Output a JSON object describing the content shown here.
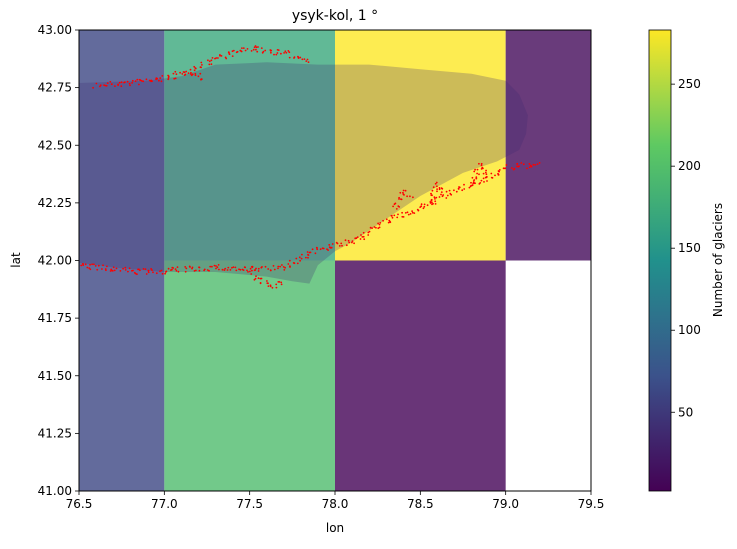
{
  "chart_data": {
    "type": "heatmap",
    "title": "ysyk-kol, 1 °",
    "xlabel": "lon",
    "ylabel": "lat",
    "xlim": [
      76.5,
      79.5
    ],
    "ylim": [
      41.0,
      43.0
    ],
    "xticks": [
      "76.5",
      "77.0",
      "77.5",
      "78.0",
      "78.5",
      "79.0",
      "79.5"
    ],
    "yticks": [
      "41.00",
      "41.25",
      "41.50",
      "41.75",
      "42.00",
      "42.25",
      "42.50",
      "42.75",
      "43.00"
    ],
    "grid": false,
    "colorbar": {
      "label": "Number of glaciers",
      "colormap": "viridis",
      "range": [
        2,
        283
      ],
      "ticks": [
        "50",
        "100",
        "150",
        "200",
        "250"
      ],
      "tick_values": [
        50,
        100,
        150,
        200,
        250
      ]
    },
    "cells": [
      {
        "x0": 76.5,
        "x1": 77.0,
        "y0": 42.0,
        "y1": 43.0,
        "value": 62
      },
      {
        "x0": 77.0,
        "x1": 78.0,
        "y0": 42.0,
        "y1": 43.0,
        "value": 170
      },
      {
        "x0": 78.0,
        "x1": 79.0,
        "y0": 42.0,
        "y1": 43.0,
        "value": 283
      },
      {
        "x0": 79.0,
        "x1": 79.5,
        "y0": 42.0,
        "y1": 43.0,
        "value": 10
      },
      {
        "x0": 76.5,
        "x1": 77.0,
        "y0": 41.0,
        "y1": 42.0,
        "value": 62
      },
      {
        "x0": 77.0,
        "x1": 78.0,
        "y0": 41.0,
        "y1": 42.0,
        "value": 195
      },
      {
        "x0": 78.0,
        "x1": 79.0,
        "y0": 41.0,
        "y1": 42.0,
        "value": 4
      }
    ],
    "lake_outline": [
      [
        76.5,
        42.77
      ],
      [
        76.9,
        42.78
      ],
      [
        77.1,
        42.8
      ],
      [
        77.3,
        42.85
      ],
      [
        77.6,
        42.86
      ],
      [
        77.9,
        42.85
      ],
      [
        78.2,
        42.85
      ],
      [
        78.5,
        42.83
      ],
      [
        78.8,
        42.81
      ],
      [
        79.0,
        42.78
      ],
      [
        79.08,
        42.72
      ],
      [
        79.13,
        42.63
      ],
      [
        79.12,
        42.55
      ],
      [
        79.08,
        42.48
      ],
      [
        78.95,
        42.43
      ],
      [
        78.75,
        42.38
      ],
      [
        78.5,
        42.28
      ],
      [
        78.3,
        42.18
      ],
      [
        78.1,
        42.08
      ],
      [
        78.0,
        42.04
      ],
      [
        77.9,
        41.98
      ],
      [
        77.85,
        41.9
      ],
      [
        77.75,
        41.91
      ],
      [
        77.6,
        41.93
      ],
      [
        77.3,
        41.95
      ],
      [
        77.0,
        41.95
      ],
      [
        76.7,
        41.97
      ],
      [
        76.5,
        41.99
      ]
    ],
    "glacier_points": {
      "color": "#ff0000",
      "tracks": [
        [
          [
            76.6,
            42.76
          ],
          [
            76.8,
            42.77
          ],
          [
            77.0,
            42.79
          ],
          [
            77.15,
            42.82
          ],
          [
            77.3,
            42.88
          ],
          [
            77.5,
            42.92
          ],
          [
            77.7,
            42.9
          ],
          [
            77.85,
            42.87
          ]
        ],
        [
          [
            77.15,
            42.82
          ],
          [
            77.2,
            42.8
          ],
          [
            77.22,
            42.78
          ]
        ],
        [
          [
            76.5,
            41.98
          ],
          [
            76.7,
            41.96
          ],
          [
            76.9,
            41.95
          ],
          [
            77.1,
            41.96
          ],
          [
            77.3,
            41.97
          ],
          [
            77.5,
            41.96
          ],
          [
            77.7,
            41.97
          ],
          [
            77.9,
            42.05
          ],
          [
            78.1,
            42.08
          ],
          [
            78.3,
            42.17
          ],
          [
            78.5,
            42.23
          ],
          [
            78.7,
            42.3
          ],
          [
            78.85,
            42.34
          ],
          [
            79.0,
            42.4
          ],
          [
            79.2,
            42.42
          ]
        ],
        [
          [
            77.5,
            41.96
          ],
          [
            77.55,
            41.92
          ],
          [
            77.6,
            41.89
          ],
          [
            77.7,
            41.9
          ]
        ],
        [
          [
            78.35,
            42.22
          ],
          [
            78.4,
            42.3
          ],
          [
            78.45,
            42.28
          ]
        ],
        [
          [
            78.55,
            42.25
          ],
          [
            78.6,
            42.33
          ],
          [
            78.65,
            42.3
          ]
        ],
        [
          [
            78.8,
            42.32
          ],
          [
            78.85,
            42.42
          ],
          [
            78.9,
            42.36
          ]
        ]
      ]
    }
  }
}
